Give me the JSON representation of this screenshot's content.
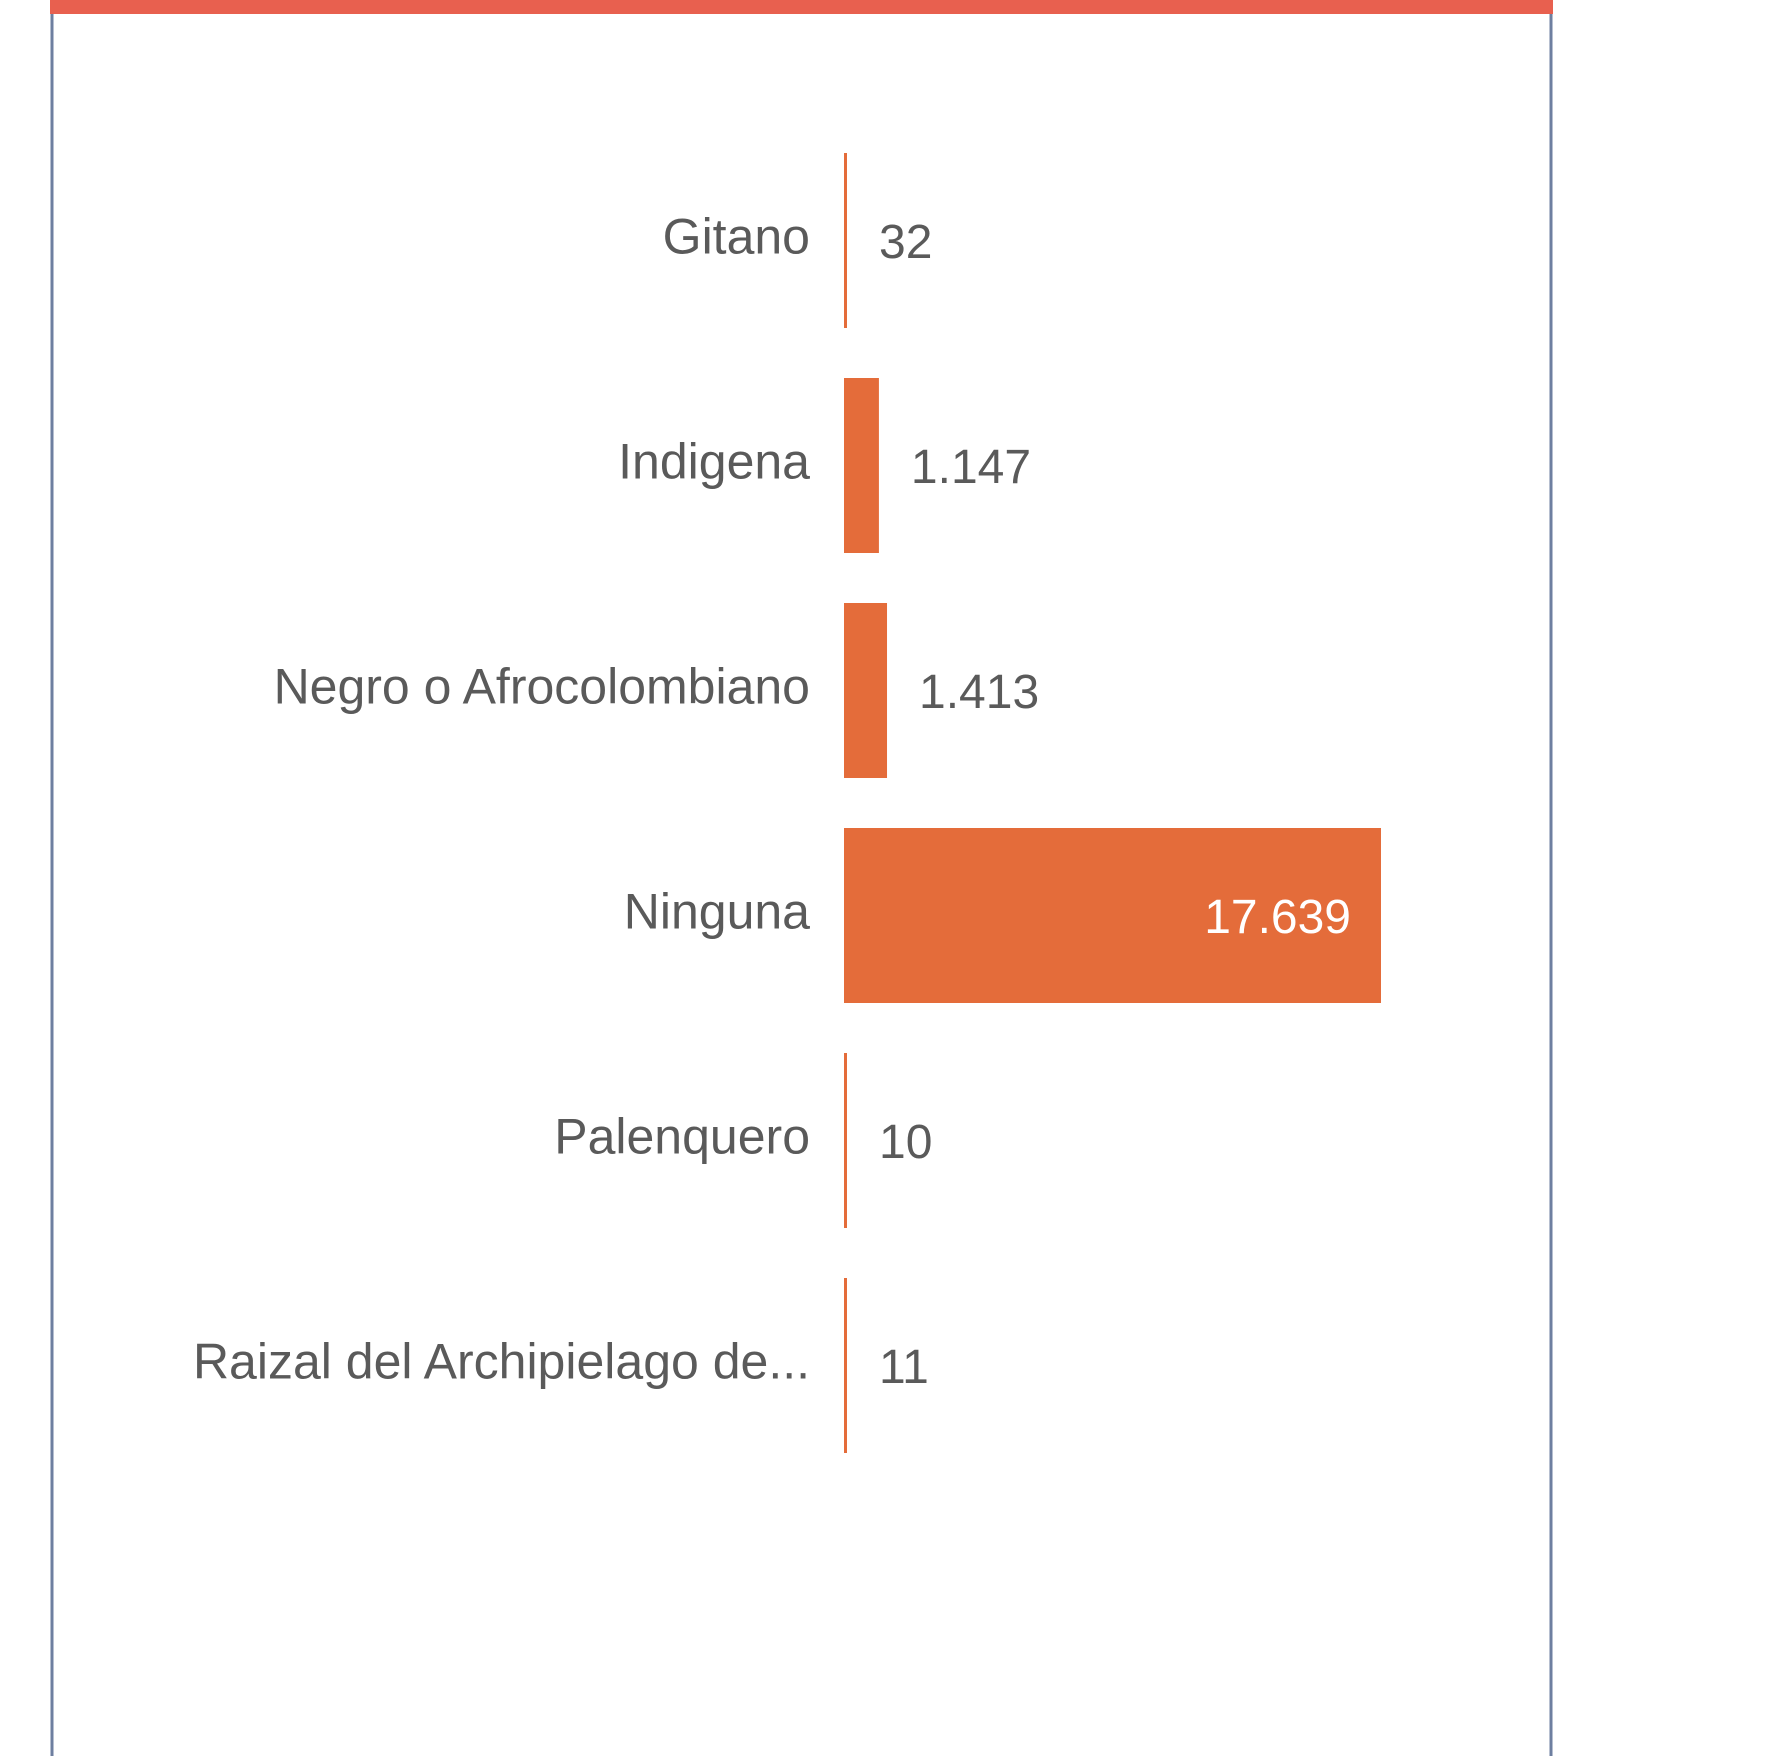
{
  "chart_data": {
    "type": "bar",
    "orientation": "horizontal",
    "categories": [
      "Gitano",
      "Indigena",
      "Negro o Afrocolombiano",
      "Ninguna",
      "Palenquero",
      "Raizal del Archipielago de..."
    ],
    "values": [
      32,
      1147,
      1413,
      17639,
      10,
      11
    ],
    "value_labels": [
      "32",
      "1.147",
      "1.413",
      "17.639",
      "10",
      "11"
    ],
    "color": "#e46c3a"
  }
}
